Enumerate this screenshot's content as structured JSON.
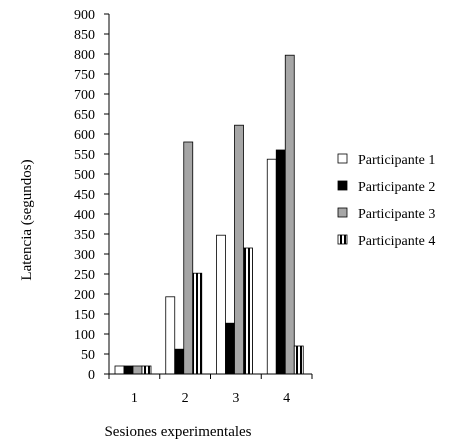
{
  "chart_data": {
    "type": "bar",
    "xlabel": "Sesiones experimentales",
    "ylabel": "Latencia (segundos)",
    "ylim": [
      0,
      900
    ],
    "ytick_step": 50,
    "categories": [
      "1",
      "2",
      "3",
      "4"
    ],
    "grid": false,
    "legend_position": "right",
    "series": [
      {
        "name": "Participante 1",
        "style": "white",
        "values": [
          20,
          193,
          347,
          537
        ]
      },
      {
        "name": "Participante 2",
        "style": "black",
        "values": [
          20,
          62,
          127,
          560
        ]
      },
      {
        "name": "Participante 3",
        "style": "gray",
        "values": [
          20,
          580,
          622,
          797
        ]
      },
      {
        "name": "Participante 4",
        "style": "vertical-stripes",
        "values": [
          20,
          252,
          315,
          70
        ]
      }
    ],
    "colors": {
      "white": "#ffffff",
      "black": "#000000",
      "gray": "#a6a6a6",
      "outline": "#000000"
    }
  }
}
